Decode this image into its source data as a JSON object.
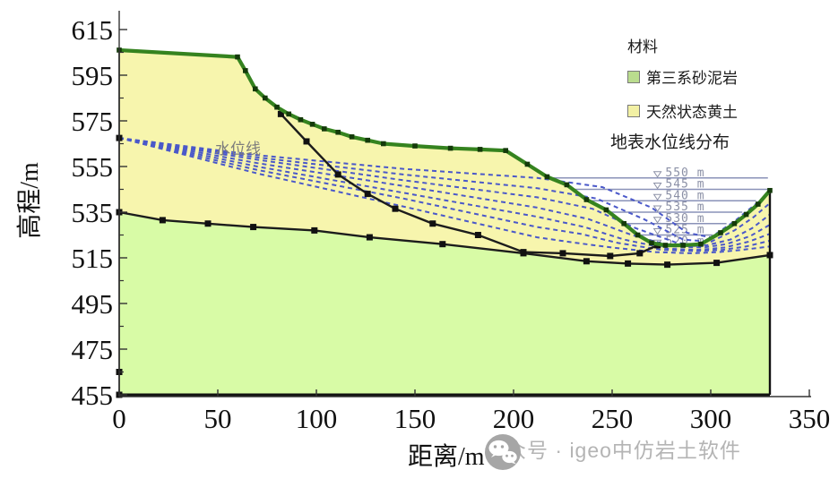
{
  "colors": {
    "surface_line": "#35831f",
    "surface_marker": "#143a0a",
    "black_line": "#1c1c1c",
    "loess_fill": "#f7f5ad",
    "sandstone_fill": "#d8fba6",
    "drawdown_line": "#4a58c9",
    "level_line": "#8a92b8",
    "level_label": "#8b90a6",
    "axis": "#333333",
    "watermark_gray": "#b4b4b4"
  },
  "axes": {
    "x": {
      "title": "距离/m",
      "min": 0,
      "max": 350,
      "ticks": [
        0,
        50,
        100,
        150,
        200,
        250,
        300,
        350
      ],
      "tick_labels": [
        "0",
        "50",
        "100",
        "150",
        "200",
        "250",
        "300",
        "350"
      ]
    },
    "y": {
      "title": "高程/m",
      "min": 455,
      "max": 615,
      "ticks": [
        455,
        475,
        495,
        515,
        535,
        555,
        575,
        595,
        615
      ],
      "minor_ticks": [
        465,
        485,
        505,
        525,
        545,
        565,
        585,
        605
      ],
      "tick_labels": [
        "455",
        "475",
        "495",
        "515",
        "535",
        "555",
        "575",
        "595",
        "615"
      ]
    }
  },
  "legend": {
    "title": "材料",
    "items": [
      {
        "label": "第三系砂泥岩",
        "color": "#badc8e"
      },
      {
        "label": "天然状态黄土",
        "color": "#f2f0a4"
      }
    ],
    "subtitle": "地表水位线分布"
  },
  "annotations": {
    "water_line_label": "水位线"
  },
  "watermark": {
    "text": "公众号 · igeo中仿岩土软件"
  },
  "chart_data": {
    "type": "line",
    "title": "",
    "xlabel": "距离/m",
    "ylabel": "高程/m",
    "xlim": [
      0,
      350
    ],
    "ylim": [
      455,
      615
    ],
    "model_right_edge_x": 330,
    "regions": [
      {
        "name": "天然状态黄土",
        "fill": "#f7f5ad"
      },
      {
        "name": "第三系砂泥岩",
        "fill": "#d8fba6"
      }
    ],
    "series": [
      {
        "name": "坡面线",
        "role": "surface_profile",
        "color": "#35831f",
        "points": [
          [
            0,
            606
          ],
          [
            60,
            603
          ],
          [
            64,
            597
          ],
          [
            69,
            589
          ],
          [
            74,
            585
          ],
          [
            80,
            581
          ],
          [
            86,
            578
          ],
          [
            92,
            575.5
          ],
          [
            98,
            573.5
          ],
          [
            104,
            571.5
          ],
          [
            111,
            570
          ],
          [
            118,
            568
          ],
          [
            126,
            566.5
          ],
          [
            134,
            565
          ],
          [
            150,
            564
          ],
          [
            168,
            563
          ],
          [
            183,
            562.5
          ],
          [
            196,
            562
          ],
          [
            207,
            556
          ],
          [
            217,
            550.5
          ],
          [
            227,
            547
          ],
          [
            237,
            540.5
          ],
          [
            247,
            536
          ],
          [
            256,
            530
          ],
          [
            263,
            525
          ],
          [
            270,
            521.5
          ],
          [
            277,
            520.5
          ],
          [
            286,
            520.5
          ],
          [
            295,
            521
          ],
          [
            305,
            526
          ],
          [
            312,
            530
          ],
          [
            318,
            534
          ],
          [
            324,
            538.5
          ],
          [
            330,
            544.5
          ]
        ]
      },
      {
        "name": "滑动面",
        "role": "slip_surface",
        "color": "#1c1c1c",
        "points": [
          [
            82,
            578
          ],
          [
            95,
            566
          ],
          [
            111,
            551.5
          ],
          [
            126,
            543
          ],
          [
            140,
            536.5
          ],
          [
            159,
            530
          ],
          [
            182,
            525
          ],
          [
            205,
            517.5
          ],
          [
            225,
            517
          ],
          [
            249,
            515.8
          ],
          [
            264,
            517
          ],
          [
            273,
            520.5
          ]
        ]
      },
      {
        "name": "地层分界线",
        "role": "layer_boundary",
        "color": "#1c1c1c",
        "points": [
          [
            0,
            535
          ],
          [
            22,
            531.5
          ],
          [
            45,
            530
          ],
          [
            68,
            528.5
          ],
          [
            99,
            527
          ],
          [
            127,
            524
          ],
          [
            164,
            521
          ],
          [
            205,
            517
          ],
          [
            237,
            513.5
          ],
          [
            258,
            512.5
          ],
          [
            278,
            512
          ],
          [
            303,
            512.8
          ],
          [
            330,
            516.2
          ]
        ]
      }
    ],
    "water_levels": [
      {
        "label": "550 m",
        "elevation": 550,
        "x_start": 218,
        "x_end": 329
      },
      {
        "label": "545 m",
        "elevation": 545,
        "x_start": 230,
        "x_end": 329
      },
      {
        "label": "540 m",
        "elevation": 540,
        "x_start": 238,
        "x_end": 323
      },
      {
        "label": "535 m",
        "elevation": 535,
        "x_start": 249,
        "x_end": 316
      },
      {
        "label": "530 m",
        "elevation": 530,
        "x_start": 256,
        "x_end": 308
      },
      {
        "label": "525 m",
        "elevation": 525,
        "x_start": 263,
        "x_end": 301
      },
      {
        "label": "520 m",
        "elevation": 520,
        "x_start": 271,
        "x_end": 296
      }
    ],
    "drawdown_curves": [
      {
        "level": 550,
        "points": [
          [
            0,
            567.5
          ],
          [
            70,
            560
          ],
          [
            144,
            554
          ],
          [
            212,
            550
          ],
          [
            245,
            546
          ],
          [
            270,
            537
          ],
          [
            288,
            526
          ],
          [
            300,
            524
          ],
          [
            312,
            531
          ],
          [
            322,
            538
          ],
          [
            330,
            544
          ]
        ]
      },
      {
        "level": 545,
        "points": [
          [
            0,
            567.5
          ],
          [
            70,
            559
          ],
          [
            144,
            551.5
          ],
          [
            212,
            545.5
          ],
          [
            242,
            541
          ],
          [
            266,
            532
          ],
          [
            286,
            523
          ],
          [
            300,
            522
          ],
          [
            312,
            527
          ],
          [
            322,
            533
          ],
          [
            330,
            539
          ]
        ]
      },
      {
        "level": 540,
        "points": [
          [
            0,
            567.5
          ],
          [
            70,
            558
          ],
          [
            144,
            549
          ],
          [
            212,
            541.5
          ],
          [
            240,
            536.5
          ],
          [
            262,
            528
          ],
          [
            283,
            521.5
          ],
          [
            298,
            520.5
          ],
          [
            310,
            523
          ],
          [
            321,
            528
          ],
          [
            330,
            534
          ]
        ]
      },
      {
        "level": 535,
        "points": [
          [
            0,
            567.5
          ],
          [
            70,
            556.5
          ],
          [
            144,
            546.5
          ],
          [
            212,
            537
          ],
          [
            238,
            532
          ],
          [
            260,
            525
          ],
          [
            281,
            520
          ],
          [
            296,
            519.5
          ],
          [
            308,
            521
          ],
          [
            320,
            524.5
          ],
          [
            330,
            529.5
          ]
        ]
      },
      {
        "level": 530,
        "points": [
          [
            0,
            567.5
          ],
          [
            70,
            555
          ],
          [
            144,
            543.5
          ],
          [
            212,
            533
          ],
          [
            236,
            528.5
          ],
          [
            256,
            523
          ],
          [
            278,
            519
          ],
          [
            294,
            518.5
          ],
          [
            307,
            519.5
          ],
          [
            319,
            522
          ],
          [
            330,
            525.5
          ]
        ]
      },
      {
        "level": 525,
        "points": [
          [
            0,
            567.5
          ],
          [
            70,
            553.5
          ],
          [
            144,
            541
          ],
          [
            212,
            528.5
          ],
          [
            234,
            525.5
          ],
          [
            253,
            521.5
          ],
          [
            275,
            518.5
          ],
          [
            292,
            518
          ],
          [
            306,
            518.5
          ],
          [
            318,
            520
          ],
          [
            330,
            522.5
          ]
        ]
      },
      {
        "level": 520,
        "points": [
          [
            0,
            567.5
          ],
          [
            70,
            552
          ],
          [
            144,
            537.5
          ],
          [
            212,
            524
          ],
          [
            232,
            521.5
          ],
          [
            250,
            519.5
          ],
          [
            272,
            517.5
          ],
          [
            290,
            517
          ],
          [
            304,
            517.5
          ],
          [
            316,
            518.5
          ],
          [
            330,
            520
          ]
        ]
      }
    ],
    "left_axis_markers": [
      [
        0,
        567.5
      ],
      [
        0,
        465
      ],
      [
        0,
        455
      ]
    ]
  }
}
